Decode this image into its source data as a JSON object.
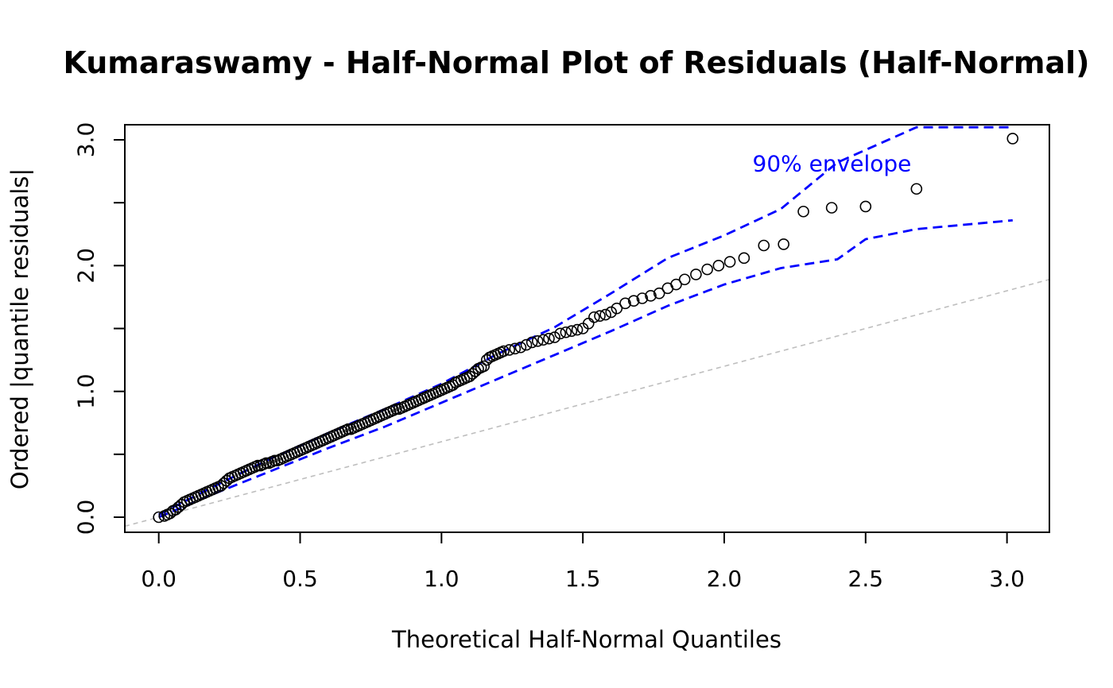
{
  "chart_data": {
    "type": "scatter",
    "title": "Kumaraswamy - Half-Normal Plot of Residuals (Half-Normal)",
    "xlabel": "Theoretical Half-Normal Quantiles",
    "ylabel": "Ordered |quantile residuals|",
    "xlim": [
      -0.12,
      3.15
    ],
    "ylim": [
      -0.12,
      3.12
    ],
    "xticks": [
      0.0,
      0.5,
      1.0,
      1.5,
      2.0,
      2.5,
      3.0
    ],
    "xtick_labels": [
      "0.0",
      "0.5",
      "1.0",
      "1.5",
      "2.0",
      "2.5",
      "3.0"
    ],
    "yticks": [
      0.0,
      0.5,
      1.0,
      1.5,
      2.0,
      2.5,
      3.0
    ],
    "ytick_labels": [
      "0.0",
      "",
      "1.0",
      "",
      "2.0",
      "",
      "3.0"
    ],
    "grid": false,
    "annotation": {
      "text": "90% envelope",
      "x": 2.1,
      "y": 2.75,
      "color": "#0000ff"
    },
    "reference_line": {
      "slope": 0.6,
      "intercept": 0.0,
      "color": "#bebebe",
      "style": "dashed"
    },
    "points": {
      "x": [
        0.0,
        0.02,
        0.03,
        0.04,
        0.05,
        0.06,
        0.07,
        0.08,
        0.09,
        0.1,
        0.11,
        0.12,
        0.13,
        0.14,
        0.15,
        0.16,
        0.17,
        0.18,
        0.19,
        0.2,
        0.21,
        0.22,
        0.23,
        0.24,
        0.25,
        0.26,
        0.27,
        0.28,
        0.29,
        0.3,
        0.31,
        0.32,
        0.33,
        0.34,
        0.35,
        0.36,
        0.37,
        0.38,
        0.39,
        0.4,
        0.41,
        0.42,
        0.43,
        0.44,
        0.45,
        0.46,
        0.47,
        0.48,
        0.49,
        0.5,
        0.51,
        0.52,
        0.53,
        0.54,
        0.55,
        0.56,
        0.57,
        0.58,
        0.59,
        0.6,
        0.61,
        0.62,
        0.63,
        0.64,
        0.65,
        0.66,
        0.67,
        0.68,
        0.69,
        0.7,
        0.71,
        0.72,
        0.73,
        0.74,
        0.75,
        0.76,
        0.77,
        0.78,
        0.79,
        0.8,
        0.81,
        0.82,
        0.83,
        0.84,
        0.85,
        0.86,
        0.87,
        0.88,
        0.89,
        0.9,
        0.91,
        0.92,
        0.93,
        0.94,
        0.95,
        0.96,
        0.97,
        0.98,
        0.99,
        1.0,
        1.01,
        1.02,
        1.03,
        1.04,
        1.05,
        1.06,
        1.07,
        1.08,
        1.09,
        1.1,
        1.11,
        1.12,
        1.13,
        1.14,
        1.15,
        1.16,
        1.17,
        1.18,
        1.19,
        1.2,
        1.21,
        1.22,
        1.24,
        1.26,
        1.28,
        1.3,
        1.32,
        1.34,
        1.36,
        1.38,
        1.4,
        1.42,
        1.44,
        1.46,
        1.48,
        1.5,
        1.52,
        1.54,
        1.56,
        1.58,
        1.6,
        1.62,
        1.65,
        1.68,
        1.71,
        1.74,
        1.77,
        1.8,
        1.83,
        1.86,
        1.9,
        1.94,
        1.98,
        2.02,
        2.07,
        2.14,
        2.21,
        2.28,
        2.38,
        2.5,
        2.68,
        3.02
      ],
      "y": [
        0.0,
        0.01,
        0.02,
        0.03,
        0.05,
        0.06,
        0.08,
        0.1,
        0.12,
        0.13,
        0.14,
        0.15,
        0.16,
        0.17,
        0.18,
        0.19,
        0.2,
        0.21,
        0.22,
        0.23,
        0.24,
        0.25,
        0.27,
        0.29,
        0.31,
        0.32,
        0.33,
        0.34,
        0.35,
        0.36,
        0.37,
        0.38,
        0.39,
        0.4,
        0.41,
        0.41,
        0.42,
        0.43,
        0.43,
        0.44,
        0.45,
        0.45,
        0.46,
        0.47,
        0.48,
        0.49,
        0.5,
        0.51,
        0.52,
        0.53,
        0.54,
        0.55,
        0.56,
        0.57,
        0.58,
        0.59,
        0.6,
        0.61,
        0.62,
        0.63,
        0.64,
        0.65,
        0.66,
        0.67,
        0.68,
        0.69,
        0.7,
        0.7,
        0.71,
        0.72,
        0.73,
        0.74,
        0.75,
        0.76,
        0.77,
        0.78,
        0.79,
        0.8,
        0.81,
        0.82,
        0.83,
        0.84,
        0.85,
        0.86,
        0.86,
        0.87,
        0.88,
        0.89,
        0.9,
        0.91,
        0.92,
        0.93,
        0.94,
        0.95,
        0.96,
        0.97,
        0.98,
        0.99,
        1.0,
        1.01,
        1.02,
        1.03,
        1.04,
        1.05,
        1.07,
        1.08,
        1.09,
        1.1,
        1.11,
        1.12,
        1.14,
        1.16,
        1.18,
        1.19,
        1.2,
        1.25,
        1.27,
        1.28,
        1.29,
        1.3,
        1.31,
        1.32,
        1.33,
        1.34,
        1.35,
        1.37,
        1.39,
        1.4,
        1.41,
        1.42,
        1.43,
        1.46,
        1.47,
        1.48,
        1.49,
        1.5,
        1.54,
        1.59,
        1.6,
        1.61,
        1.63,
        1.66,
        1.7,
        1.72,
        1.74,
        1.76,
        1.78,
        1.82,
        1.85,
        1.89,
        1.93,
        1.97,
        2.0,
        2.03,
        2.06,
        2.16,
        2.17,
        2.43,
        2.46,
        2.47,
        2.61,
        3.01
      ]
    },
    "envelope": {
      "name": "90% envelope",
      "color": "#0000ff",
      "style": "dashed",
      "x": [
        0.0,
        0.2,
        0.4,
        0.6,
        0.8,
        1.0,
        1.2,
        1.4,
        1.6,
        1.8,
        2.0,
        2.2,
        2.4,
        2.5,
        2.68,
        3.02
      ],
      "upper": [
        0.02,
        0.25,
        0.47,
        0.67,
        0.86,
        1.06,
        1.3,
        1.51,
        1.78,
        2.06,
        2.24,
        2.45,
        2.82,
        2.92,
        3.1,
        3.1
      ],
      "lower": [
        0.0,
        0.19,
        0.37,
        0.55,
        0.72,
        0.91,
        1.1,
        1.29,
        1.48,
        1.68,
        1.85,
        1.98,
        2.05,
        2.21,
        2.29,
        2.36
      ]
    }
  }
}
